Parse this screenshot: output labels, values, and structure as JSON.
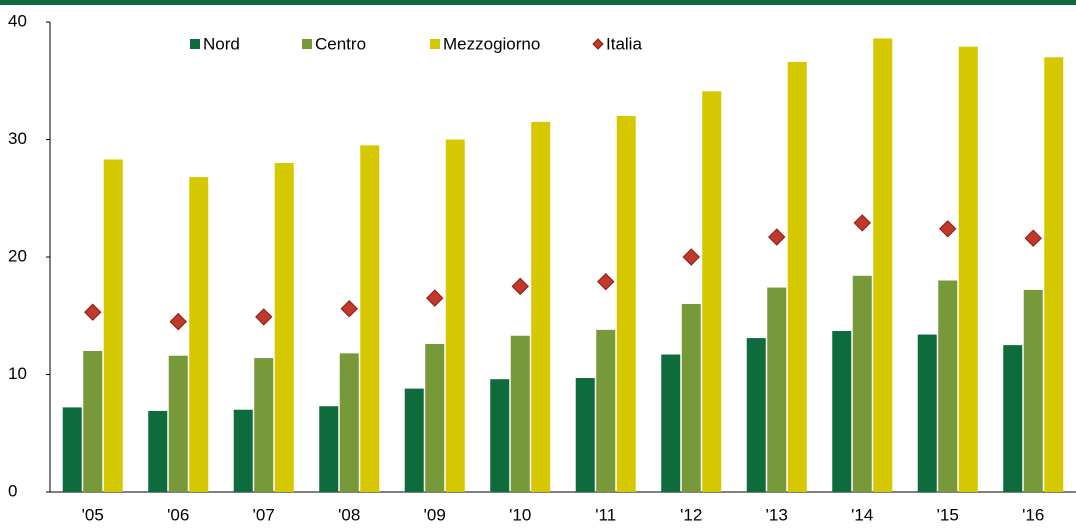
{
  "chart_data": {
    "type": "bar",
    "categories": [
      "'05",
      "'06",
      "'07",
      "'08",
      "'09",
      "'10",
      "'11",
      "'12",
      "'13",
      "'14",
      "'15",
      "'16"
    ],
    "series": [
      {
        "name": "Nord",
        "color": "#0e6b3c",
        "values": [
          7.2,
          6.9,
          7.0,
          7.3,
          8.8,
          9.6,
          9.7,
          11.7,
          13.1,
          13.7,
          13.4,
          12.5
        ]
      },
      {
        "name": "Centro",
        "color": "#77993a",
        "values": [
          12.0,
          11.6,
          11.4,
          11.8,
          12.6,
          13.3,
          13.8,
          16.0,
          17.4,
          18.4,
          18.0,
          17.2
        ]
      },
      {
        "name": "Mezzogiorno",
        "color": "#d6c800",
        "values": [
          28.3,
          26.8,
          28.0,
          29.5,
          30.0,
          31.5,
          32.0,
          34.1,
          36.6,
          38.6,
          37.9,
          37.0
        ]
      },
      {
        "name": "Italia",
        "color": "#c0392b",
        "marker": "diamond",
        "values": [
          15.3,
          14.5,
          14.9,
          15.6,
          16.5,
          17.5,
          17.9,
          20.0,
          21.7,
          22.9,
          22.4,
          21.6
        ]
      }
    ],
    "ylim": [
      0,
      40
    ],
    "yticks": [
      0,
      10,
      20,
      30,
      40
    ],
    "grid": false,
    "legend": "top"
  }
}
